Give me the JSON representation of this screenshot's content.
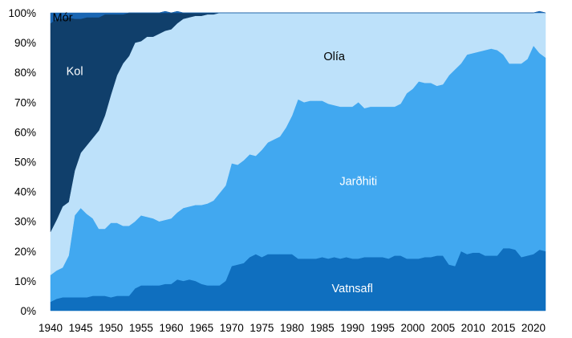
{
  "chart_data": {
    "type": "area",
    "stacked": true,
    "percent": true,
    "x": [
      1940,
      1941,
      1942,
      1943,
      1944,
      1945,
      1946,
      1947,
      1948,
      1949,
      1950,
      1951,
      1952,
      1953,
      1954,
      1955,
      1956,
      1957,
      1958,
      1959,
      1960,
      1961,
      1962,
      1963,
      1964,
      1965,
      1966,
      1967,
      1968,
      1969,
      1970,
      1971,
      1972,
      1973,
      1974,
      1975,
      1976,
      1977,
      1978,
      1979,
      1980,
      1981,
      1982,
      1983,
      1984,
      1985,
      1986,
      1987,
      1988,
      1989,
      1990,
      1991,
      1992,
      1993,
      1994,
      1995,
      1996,
      1997,
      1998,
      1999,
      2000,
      2001,
      2002,
      2003,
      2004,
      2005,
      2006,
      2007,
      2008,
      2009,
      2010,
      2011,
      2012,
      2013,
      2014,
      2015,
      2016,
      2017,
      2018,
      2019,
      2020,
      2021,
      2022
    ],
    "series": [
      {
        "name": "Vatnsafl",
        "color": "#0F6FBF",
        "values": [
          3,
          4,
          4.5,
          4.5,
          4.5,
          4.5,
          4.5,
          5,
          5,
          5,
          4.5,
          5,
          5,
          5,
          7.5,
          8.5,
          8.5,
          8.5,
          8.5,
          9,
          9,
          10.5,
          10,
          10.5,
          10,
          9,
          8.5,
          8.5,
          8.5,
          10,
          15,
          15.5,
          16,
          18,
          19,
          18,
          19,
          19,
          19,
          19,
          19,
          17.5,
          17.5,
          17.5,
          17.5,
          18,
          17.5,
          18,
          17.5,
          18,
          17.5,
          17.5,
          18,
          18,
          18,
          18,
          17.5,
          18.5,
          18.5,
          17.5,
          17.5,
          17.5,
          18,
          18,
          18.5,
          18.5,
          15.5,
          15,
          20,
          19,
          19.5,
          19.5,
          18.5,
          18.5,
          18.5,
          21,
          21,
          20.5,
          18,
          18.5,
          19,
          20.5,
          20
        ]
      },
      {
        "name": "Jarðhiti",
        "color": "#41A8F0",
        "values": [
          9,
          9.5,
          10,
          14,
          27.5,
          30,
          28,
          26,
          22.5,
          22.5,
          25,
          24.5,
          23.5,
          23.5,
          22.5,
          23.5,
          23,
          22.5,
          21.5,
          21.5,
          22,
          22.5,
          24.5,
          24.5,
          25.5,
          26.5,
          27.5,
          28.5,
          31,
          32,
          34.5,
          33.5,
          34.5,
          34.5,
          33,
          36,
          37.5,
          38.5,
          39.5,
          42.5,
          46.5,
          53.5,
          52.5,
          53,
          53,
          52.5,
          52,
          51,
          51,
          50.5,
          51,
          52.5,
          50,
          50.5,
          50.5,
          50.5,
          51,
          50,
          51,
          55.5,
          57,
          59.5,
          58.5,
          58.5,
          57,
          57.5,
          63.5,
          66,
          63,
          67,
          67,
          67.5,
          69,
          69.5,
          69,
          65,
          62,
          62.5,
          65,
          66,
          70,
          66,
          65
        ]
      },
      {
        "name": "Olía",
        "color": "#BDE1FA",
        "values": [
          14.5,
          17,
          20.5,
          18,
          15,
          18.5,
          23,
          27,
          33,
          38,
          43,
          49.5,
          54.5,
          57,
          60,
          58.5,
          60.5,
          61,
          63,
          63.5,
          63.5,
          63.5,
          63.5,
          63.5,
          63.5,
          63.5,
          63.5,
          62.5,
          60.5,
          58,
          50.5,
          51,
          49.5,
          47.5,
          48,
          46,
          43.5,
          42.5,
          41.5,
          38.5,
          34.5,
          29,
          30,
          29.5,
          29.5,
          29.5,
          30.5,
          31,
          31.5,
          31.5,
          31.5,
          30,
          32,
          31.5,
          31.5,
          31.5,
          31.5,
          31.5,
          30.5,
          27,
          25.5,
          23,
          23.5,
          23.5,
          24.5,
          24,
          21,
          19,
          17,
          14,
          13.5,
          13,
          12.5,
          12,
          12.5,
          14,
          17,
          17,
          17,
          15.5,
          11,
          14,
          15
        ]
      },
      {
        "name": "Kol",
        "color": "#103F6B",
        "values": [
          70,
          67.5,
          63,
          62,
          51,
          45,
          43,
          40.5,
          38,
          34,
          27,
          20.5,
          16.5,
          14.5,
          10,
          9.5,
          8,
          8,
          7,
          6.5,
          5.5,
          4,
          2,
          1.5,
          1,
          1,
          0.5,
          0.5,
          0,
          0,
          0,
          0,
          0,
          0,
          0,
          0,
          0,
          0,
          0,
          0,
          0,
          0,
          0,
          0,
          0,
          0,
          0,
          0,
          0,
          0,
          0,
          0,
          0,
          0,
          0,
          0,
          0,
          0,
          0,
          0,
          0,
          0,
          0,
          0,
          0,
          0,
          0,
          0,
          0,
          0,
          0,
          0,
          0,
          0,
          0,
          0,
          0,
          0,
          0,
          0,
          0,
          0,
          0
        ]
      },
      {
        "name": "Mór",
        "color": "#1A66B3",
        "values": [
          3.5,
          2,
          2,
          1.5,
          2,
          2,
          1.5,
          1.5,
          1.5,
          1,
          0.5,
          0.5,
          0.5,
          0,
          0,
          0,
          0,
          0,
          0,
          0,
          0,
          0,
          0,
          0,
          0,
          0,
          0,
          0,
          0,
          0,
          0,
          0,
          0,
          0,
          0,
          0,
          0,
          0,
          0,
          0,
          0,
          0,
          0,
          0,
          0,
          0,
          0,
          0,
          0,
          0,
          0,
          0,
          0,
          0,
          0,
          0,
          0,
          0,
          0,
          0,
          0,
          0,
          0,
          0,
          0,
          0,
          0,
          0,
          0,
          0,
          0,
          0,
          0,
          0,
          0,
          0,
          0,
          0,
          0,
          0,
          0,
          0,
          0
        ]
      }
    ],
    "xticks": [
      1940,
      1945,
      1950,
      1955,
      1960,
      1965,
      1970,
      1975,
      1980,
      1985,
      1990,
      1995,
      2000,
      2005,
      2010,
      2015,
      2020
    ],
    "xlim": [
      1940,
      2022
    ],
    "ylim": [
      0,
      100
    ],
    "yticks": [
      "0%",
      "10%",
      "20%",
      "30%",
      "40%",
      "50%",
      "60%",
      "70%",
      "80%",
      "90%",
      "100%"
    ],
    "series_labels": [
      {
        "text": "Mór",
        "x": 1942,
        "y": 98.5,
        "color": "#000000"
      },
      {
        "text": "Kol",
        "x": 1944,
        "y": 80.5,
        "color": "#ffffff"
      },
      {
        "text": "Olía",
        "x": 1987,
        "y": 85.5,
        "color": "#000000"
      },
      {
        "text": "Jarðhiti",
        "x": 1991,
        "y": 43.5,
        "color": "#ffffff"
      },
      {
        "text": "Vatnsafl",
        "x": 1990,
        "y": 7.5,
        "color": "#ffffff"
      }
    ],
    "grid": false,
    "legend": "none"
  }
}
